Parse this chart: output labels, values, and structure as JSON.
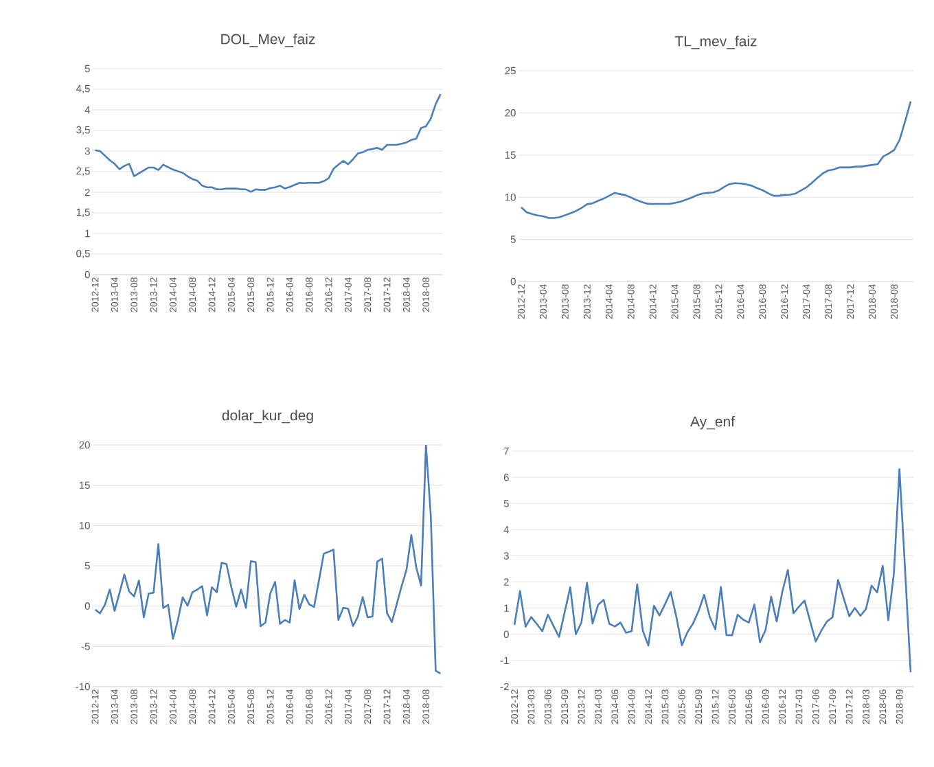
{
  "chart_data": [
    {
      "type": "line",
      "title": "DOL_Mev_faiz",
      "color": "#4a7ebb",
      "grid": "y",
      "categories": [
        "2012-12",
        null,
        null,
        null,
        "2013-04",
        null,
        null,
        null,
        "2013-08",
        null,
        null,
        null,
        "2013-12",
        null,
        null,
        null,
        "2014-04",
        null,
        null,
        null,
        "2014-08",
        null,
        null,
        null,
        "2014-12",
        null,
        null,
        null,
        "2015-04",
        null,
        null,
        null,
        "2015-08",
        null,
        null,
        null,
        "2015-12",
        null,
        null,
        null,
        "2016-04",
        null,
        null,
        null,
        "2016-08",
        null,
        null,
        null,
        "2016-12",
        null,
        null,
        null,
        "2017-04",
        null,
        null,
        null,
        "2017-08",
        null,
        null,
        null,
        "2017-12",
        null,
        null,
        null,
        "2018-04",
        null,
        null,
        null,
        "2018-08",
        null,
        null,
        null
      ],
      "values": [
        3.02,
        3.0,
        2.89,
        2.78,
        2.69,
        2.56,
        2.64,
        2.69,
        2.39,
        2.46,
        2.53,
        2.6,
        2.6,
        2.54,
        2.67,
        2.61,
        2.55,
        2.51,
        2.47,
        2.39,
        2.32,
        2.28,
        2.16,
        2.12,
        2.12,
        2.07,
        2.07,
        2.09,
        2.09,
        2.09,
        2.07,
        2.07,
        2.01,
        2.07,
        2.06,
        2.06,
        2.1,
        2.12,
        2.16,
        2.09,
        2.13,
        2.18,
        2.23,
        2.22,
        2.23,
        2.23,
        2.23,
        2.27,
        2.34,
        2.57,
        2.67,
        2.76,
        2.68,
        2.8,
        2.94,
        2.97,
        3.03,
        3.05,
        3.08,
        3.03,
        3.15,
        3.15,
        3.15,
        3.18,
        3.21,
        3.27,
        3.3,
        3.56,
        3.6,
        3.79,
        4.14,
        4.38
      ],
      "ylim": [
        0,
        5
      ],
      "yticks": [
        0,
        {
          "value": 0.5,
          "label": "0,5"
        },
        1,
        {
          "value": 1.5,
          "label": "1,5"
        },
        2,
        {
          "value": 2.5,
          "label": "2,5"
        },
        3,
        {
          "value": 3.5,
          "label": "3,5"
        },
        4,
        {
          "value": 4.5,
          "label": "4,5"
        },
        5
      ]
    },
    {
      "type": "line",
      "title": "TL_mev_faiz",
      "color": "#4a7ebb",
      "grid": "y",
      "categories": [
        "2012-12",
        null,
        null,
        null,
        "2013-04",
        null,
        null,
        null,
        "2013-08",
        null,
        null,
        null,
        "2013-12",
        null,
        null,
        null,
        "2014-04",
        null,
        null,
        null,
        "2014-08",
        null,
        null,
        null,
        "2014-12",
        null,
        null,
        null,
        "2015-04",
        null,
        null,
        null,
        "2015-08",
        null,
        null,
        null,
        "2015-12",
        null,
        null,
        null,
        "2016-04",
        null,
        null,
        null,
        "2016-08",
        null,
        null,
        null,
        "2016-12",
        null,
        null,
        null,
        "2017-04",
        null,
        null,
        null,
        "2017-08",
        null,
        null,
        null,
        "2017-12",
        null,
        null,
        null,
        "2018-04",
        null,
        null,
        null,
        "2018-08",
        null,
        null,
        null
      ],
      "values": [
        8.8,
        8.2,
        8.0,
        7.83,
        7.73,
        7.53,
        7.53,
        7.63,
        7.87,
        8.1,
        8.37,
        8.73,
        9.17,
        9.27,
        9.57,
        9.83,
        10.17,
        10.5,
        10.37,
        10.23,
        9.97,
        9.67,
        9.43,
        9.23,
        9.2,
        9.2,
        9.2,
        9.2,
        9.33,
        9.47,
        9.7,
        9.93,
        10.23,
        10.43,
        10.53,
        10.57,
        10.8,
        11.23,
        11.57,
        11.67,
        11.63,
        11.53,
        11.37,
        11.07,
        10.83,
        10.47,
        10.17,
        10.17,
        10.27,
        10.3,
        10.43,
        10.8,
        11.17,
        11.7,
        12.3,
        12.83,
        13.17,
        13.3,
        13.53,
        13.53,
        13.53,
        13.63,
        13.63,
        13.73,
        13.83,
        13.93,
        14.83,
        15.17,
        15.6,
        16.83,
        19.03,
        21.37
      ],
      "ylim": [
        0,
        25
      ],
      "yticks": [
        0,
        5,
        10,
        15,
        20,
        25
      ]
    },
    {
      "type": "line",
      "title": "dolar_kur_deg",
      "color": "#4a7ebb",
      "grid": "y",
      "categories": [
        "2012-12",
        null,
        null,
        null,
        "2013-04",
        null,
        null,
        null,
        "2013-08",
        null,
        null,
        null,
        "2013-12",
        null,
        null,
        null,
        "2014-04",
        null,
        null,
        null,
        "2014-08",
        null,
        null,
        null,
        "2014-12",
        null,
        null,
        null,
        "2015-04",
        null,
        null,
        null,
        "2015-08",
        null,
        null,
        null,
        "2015-12",
        null,
        null,
        null,
        "2016-04",
        null,
        null,
        null,
        "2016-08",
        null,
        null,
        null,
        "2016-12",
        null,
        null,
        null,
        "2017-04",
        null,
        null,
        null,
        "2017-08",
        null,
        null,
        null,
        "2017-12",
        null,
        null,
        null,
        "2018-04",
        null,
        null,
        null,
        "2018-08",
        null,
        null,
        null
      ],
      "values": [
        -0.43,
        -0.9,
        0.16,
        2.05,
        -0.6,
        1.63,
        3.92,
        1.81,
        1.2,
        3.17,
        -1.39,
        1.55,
        1.65,
        7.7,
        -0.24,
        0.16,
        -4.08,
        -1.76,
        1.09,
        0.05,
        1.73,
        2.05,
        2.48,
        -1.15,
        2.34,
        1.71,
        5.38,
        5.22,
        2.34,
        -0.08,
        2.05,
        -0.24,
        5.57,
        5.46,
        -2.5,
        -2.05,
        1.57,
        3.01,
        -2.21,
        -1.73,
        -2.05,
        3.2,
        -0.37,
        1.41,
        0.21,
        -0.11,
        3.17,
        6.5,
        6.74,
        7.0,
        -1.73,
        -0.21,
        -0.32,
        -2.48,
        -1.31,
        1.12,
        -1.39,
        -1.31,
        5.52,
        5.89,
        -0.88,
        -1.97,
        0.24,
        2.48,
        4.5,
        8.82,
        4.82,
        2.56,
        20.0,
        11.16,
        -8.02,
        -8.37
      ],
      "ylim": [
        -10,
        20
      ],
      "yticks": [
        -10,
        -5,
        0,
        5,
        10,
        15,
        20
      ]
    },
    {
      "type": "line",
      "title": "Ay_enf",
      "color": "#4a7ebb",
      "grid": "y",
      "categories": [
        "2012-12",
        null,
        null,
        "2013-03",
        null,
        null,
        "2013-06",
        null,
        null,
        "2013-09",
        null,
        null,
        "2013-12",
        null,
        null,
        "2014-03",
        null,
        null,
        "2014-06",
        null,
        null,
        "2014-09",
        null,
        null,
        "2014-12",
        null,
        null,
        "2015-03",
        null,
        null,
        "2015-06",
        null,
        null,
        "2015-09",
        null,
        null,
        "2015-12",
        null,
        null,
        "2016-03",
        null,
        null,
        "2016-06",
        null,
        null,
        "2016-09",
        null,
        null,
        "2016-12",
        null,
        null,
        "2017-03",
        null,
        null,
        "2017-06",
        null,
        null,
        "2017-09",
        null,
        null,
        "2017-12",
        null,
        null,
        "2018-03",
        null,
        null,
        "2018-06",
        null,
        null,
        "2018-09",
        null,
        null
      ],
      "values": [
        0.36,
        1.65,
        0.29,
        0.66,
        0.4,
        0.12,
        0.75,
        0.32,
        -0.1,
        0.84,
        1.8,
        0.0,
        0.45,
        1.97,
        0.41,
        1.13,
        1.32,
        0.4,
        0.3,
        0.45,
        0.06,
        0.12,
        1.91,
        0.14,
        -0.43,
        1.09,
        0.72,
        1.16,
        1.62,
        0.68,
        -0.42,
        0.08,
        0.41,
        0.89,
        1.51,
        0.67,
        0.19,
        1.81,
        -0.03,
        -0.04,
        0.75,
        0.56,
        0.45,
        1.14,
        -0.3,
        0.16,
        1.44,
        0.49,
        1.62,
        2.46,
        0.8,
        1.06,
        1.29,
        0.49,
        -0.27,
        0.14,
        0.49,
        0.65,
        2.08,
        1.38,
        0.69,
        1.01,
        0.71,
        0.97,
        1.86,
        1.6,
        2.62,
        0.54,
        2.33,
        6.31,
        2.5,
        -1.45
      ],
      "ylim": [
        -2,
        7
      ],
      "yticks": [
        -2,
        -1,
        0,
        1,
        2,
        3,
        4,
        5,
        6,
        7
      ]
    }
  ]
}
